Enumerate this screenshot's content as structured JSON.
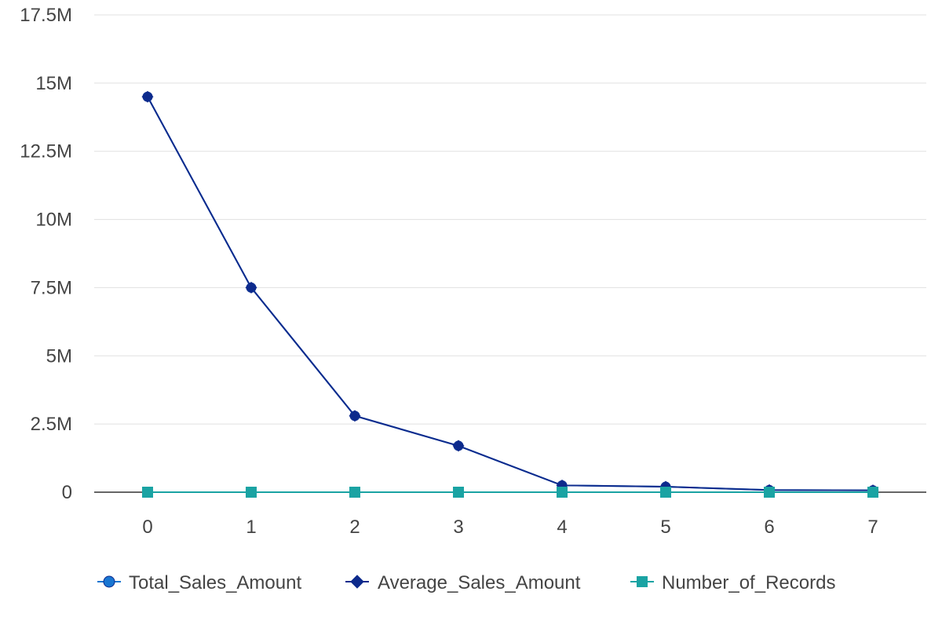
{
  "chart_data": {
    "type": "line",
    "title": "",
    "xlabel": "",
    "ylabel": "",
    "x": [
      0,
      1,
      2,
      3,
      4,
      5,
      6,
      7
    ],
    "x_tick_labels": [
      "0",
      "1",
      "2",
      "3",
      "4",
      "5",
      "6",
      "7"
    ],
    "ylim": [
      0,
      17500000
    ],
    "y_ticks": [
      0,
      2500000,
      5000000,
      7500000,
      10000000,
      12500000,
      15000000,
      17500000
    ],
    "y_tick_labels": [
      "0",
      "2.5M",
      "5M",
      "7.5M",
      "10M",
      "12.5M",
      "15M",
      "17.5M"
    ],
    "grid": true,
    "legend_position": "bottom",
    "series": [
      {
        "name": "Total_Sales_Amount",
        "color": "#1976d2",
        "marker": "circle",
        "values": [
          14500000,
          7500000,
          2800000,
          1700000,
          250000,
          200000,
          80000,
          70000
        ]
      },
      {
        "name": "Average_Sales_Amount",
        "color": "#0d2a8c",
        "marker": "diamond",
        "values": [
          14500000,
          7500000,
          2800000,
          1700000,
          250000,
          200000,
          80000,
          70000
        ]
      },
      {
        "name": "Number_of_Records",
        "color": "#1aa3a3",
        "marker": "square",
        "values": [
          1,
          1,
          1,
          1,
          1,
          1,
          1,
          1
        ]
      }
    ]
  }
}
